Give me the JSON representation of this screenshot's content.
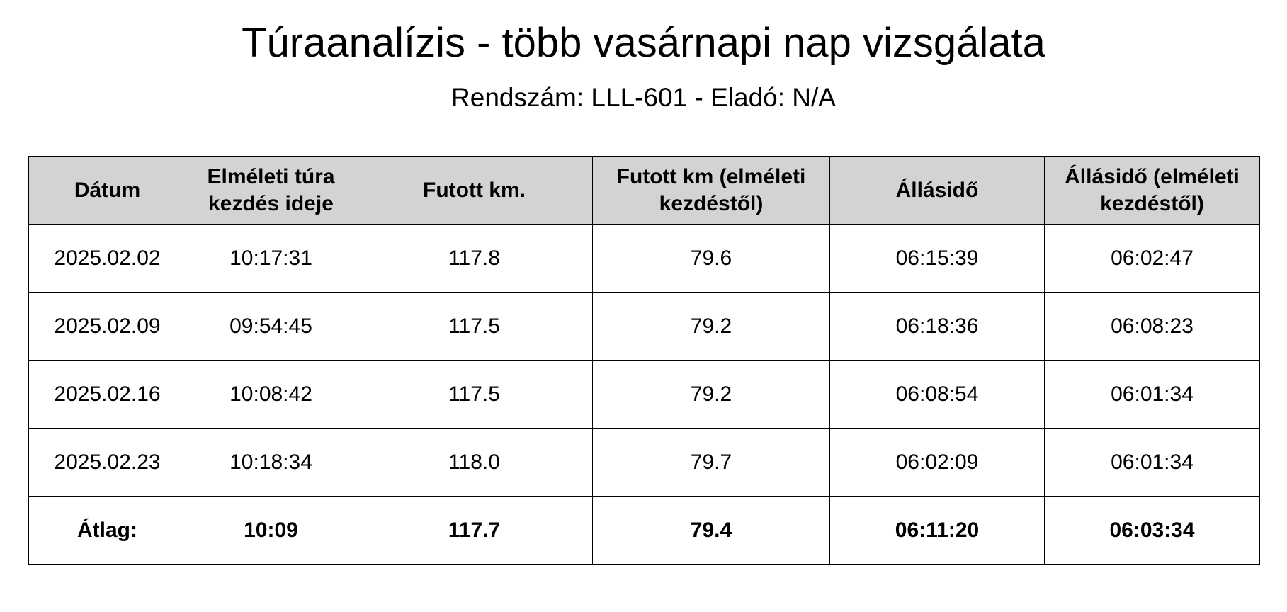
{
  "title": "Túraanalízis - több vasárnapi nap vizsgálata",
  "subtitle": "Rendszám: LLL-601 - Eladó: N/A",
  "table": {
    "headers": [
      "Dátum",
      "Elméleti túra kezdés ideje",
      "Futott km.",
      "Futott km (elméleti kezdéstől)",
      "Állásidő",
      "Állásidő (elméleti kezdéstől)"
    ],
    "rows": [
      [
        "2025.02.02",
        "10:17:31",
        "117.8",
        "79.6",
        "06:15:39",
        "06:02:47"
      ],
      [
        "2025.02.09",
        "09:54:45",
        "117.5",
        "79.2",
        "06:18:36",
        "06:08:23"
      ],
      [
        "2025.02.16",
        "10:08:42",
        "117.5",
        "79.2",
        "06:08:54",
        "06:01:34"
      ],
      [
        "2025.02.23",
        "10:18:34",
        "118.0",
        "79.7",
        "06:02:09",
        "06:01:34"
      ]
    ],
    "average": [
      "Átlag:",
      "10:09",
      "117.7",
      "79.4",
      "06:11:20",
      "06:03:34"
    ],
    "header_background": "#d3d3d3"
  }
}
